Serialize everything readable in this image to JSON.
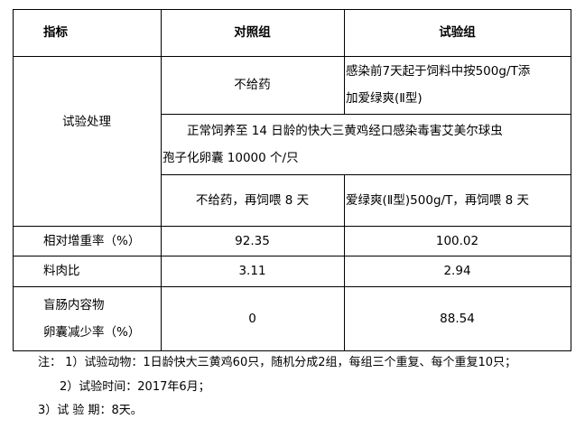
{
  "table": {
    "headers": [
      "指标",
      "对照组",
      "试验组"
    ],
    "treatment_label": "试验处理",
    "treatment_control_1": "不给药",
    "treatment_trial_1": [
      "感染前7天起于饲料中按500g/T添",
      "加爱绿爽(Ⅱ型)"
    ],
    "treatment_shared": [
      "正常饲养至 14 日龄的快大三黄鸡经口感染毒害艾美尔球虫",
      "孢子化卵囊 10000 个/只"
    ],
    "treatment_control_2": "不给药，再饲喂 8 天",
    "treatment_trial_2": "爱绿爽(Ⅱ型)500g/T，再饲喂 8 天",
    "rows": [
      {
        "label": "相对增重率（%）",
        "control": "92.35",
        "trial": "100.02"
      },
      {
        "label": "料肉比",
        "control": "3.11",
        "trial": "2.94"
      },
      {
        "label_lines": [
          "盲肠内容物",
          "卵囊减少率（%）"
        ],
        "control": "0",
        "trial": "88.54"
      }
    ]
  },
  "notes": [
    "注：  1）试验动物：1日龄快大三黄鸡60只，随机分成2组，每组三个重复、每个重复10只；",
    "2）试验时间：2017年6月；",
    "3）试 验 期：8天。"
  ]
}
